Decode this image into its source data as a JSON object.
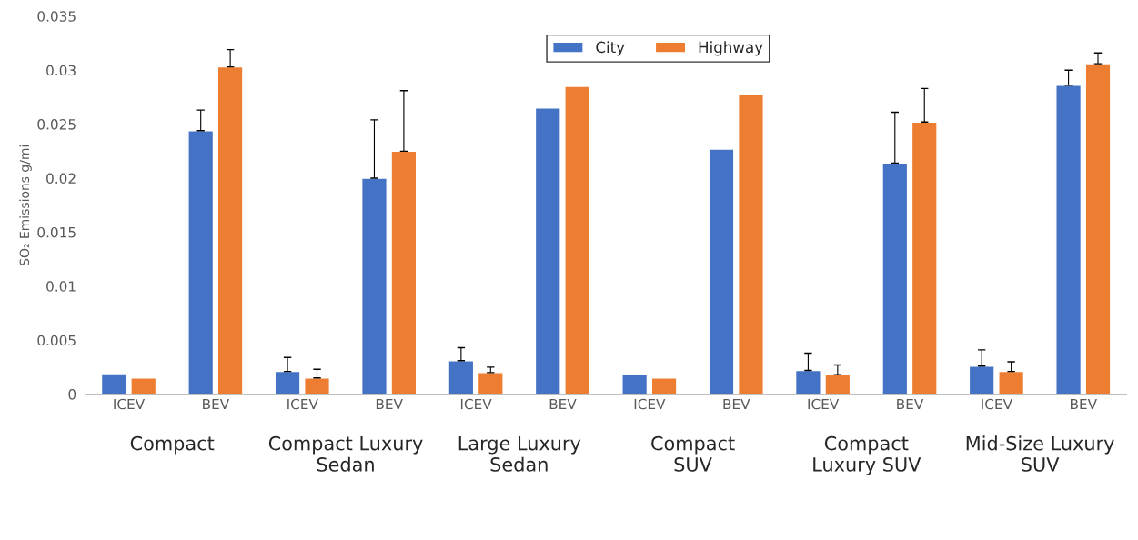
{
  "chart_data": {
    "type": "bar",
    "ylabel": "SO₂ Emissions g/mi",
    "categories": [
      "ICEV",
      "BEV",
      "ICEV",
      "BEV",
      "ICEV",
      "BEV",
      "ICEV",
      "BEV",
      "ICEV",
      "BEV",
      "ICEV",
      "BEV"
    ],
    "series": [
      {
        "name": "City",
        "color": "#4472c4",
        "values": [
          0.0019,
          0.0244,
          0.0021,
          0.02,
          0.0031,
          0.0265,
          0.0018,
          0.0227,
          0.0022,
          0.0214,
          0.0026,
          0.0286
        ],
        "errors": [
          null,
          [
            0.0244,
            0.0263
          ],
          [
            0.0021,
            0.0034
          ],
          [
            0.02,
            0.0254
          ],
          [
            0.0031,
            0.0043
          ],
          null,
          null,
          null,
          [
            0.0022,
            0.0038
          ],
          [
            0.0214,
            0.0261
          ],
          [
            0.0026,
            0.0041
          ],
          [
            0.0286,
            0.03
          ]
        ]
      },
      {
        "name": "Highway",
        "color": "#ed7d31",
        "values": [
          0.0015,
          0.0303,
          0.0015,
          0.0225,
          0.002,
          0.0285,
          0.0015,
          0.0278,
          0.0018,
          0.0252,
          0.0021,
          0.0306
        ],
        "errors": [
          null,
          [
            0.0303,
            0.0319
          ],
          [
            0.0015,
            0.0023
          ],
          [
            0.0225,
            0.0281
          ],
          [
            0.002,
            0.0025
          ],
          null,
          null,
          null,
          [
            0.0018,
            0.0027
          ],
          [
            0.0252,
            0.0283
          ],
          [
            0.0021,
            0.003
          ],
          [
            0.0306,
            0.0316
          ]
        ]
      }
    ],
    "annotations": [
      "Compact",
      "Compact Luxury\nSedan",
      "Large Luxury\nSedan",
      "Compact\nSUV",
      "Compact\nLuxury SUV",
      "Mid-Size Luxury\nSUV"
    ],
    "ylim": [
      0,
      0.035
    ],
    "yticks": [
      0,
      0.005,
      0.01,
      0.015,
      0.02,
      0.025,
      0.03,
      0.035
    ],
    "legend": "top",
    "grid": false
  }
}
